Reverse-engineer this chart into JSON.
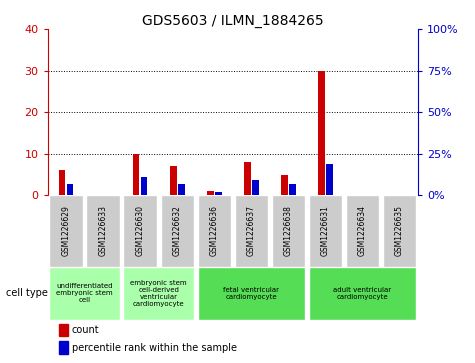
{
  "title": "GDS5603 / ILMN_1884265",
  "samples": [
    "GSM1226629",
    "GSM1226633",
    "GSM1226630",
    "GSM1226632",
    "GSM1226636",
    "GSM1226637",
    "GSM1226638",
    "GSM1226631",
    "GSM1226634",
    "GSM1226635"
  ],
  "count_values": [
    6,
    0,
    10,
    7,
    1,
    8,
    5,
    30,
    0,
    0
  ],
  "percentile_values": [
    7,
    0,
    11,
    7,
    2,
    9,
    7,
    19,
    0,
    0
  ],
  "ylim_left": [
    0,
    40
  ],
  "ylim_right": [
    0,
    100
  ],
  "yticks_left": [
    0,
    10,
    20,
    30,
    40
  ],
  "yticks_right": [
    0,
    25,
    50,
    75,
    100
  ],
  "ytick_labels_left": [
    "0",
    "10",
    "20",
    "30",
    "40"
  ],
  "ytick_labels_right": [
    "0%",
    "25%",
    "50%",
    "75%",
    "100%"
  ],
  "cell_type_groups": [
    {
      "label": "undifferentiated\nembryonic stem\ncell",
      "start": 0,
      "end": 2,
      "color": "#aaffaa"
    },
    {
      "label": "embryonic stem\ncell-derived\nventricular\ncardiomyocyte",
      "start": 2,
      "end": 4,
      "color": "#aaffaa"
    },
    {
      "label": "fetal ventricular\ncardiomyocyte",
      "start": 4,
      "end": 7,
      "color": "#55dd55"
    },
    {
      "label": "adult ventricular\ncardiomyocyte",
      "start": 7,
      "end": 10,
      "color": "#55dd55"
    }
  ],
  "bar_bg_color": "#cccccc",
  "count_color": "#cc0000",
  "percentile_color": "#0000cc",
  "bar_width": 0.18,
  "legend_count_label": "count",
  "legend_percentile_label": "percentile rank within the sample",
  "cell_type_label": "cell type",
  "grid_color": "#000000",
  "grid_linestyle": "dotted",
  "plot_bg_color": "#ffffff"
}
